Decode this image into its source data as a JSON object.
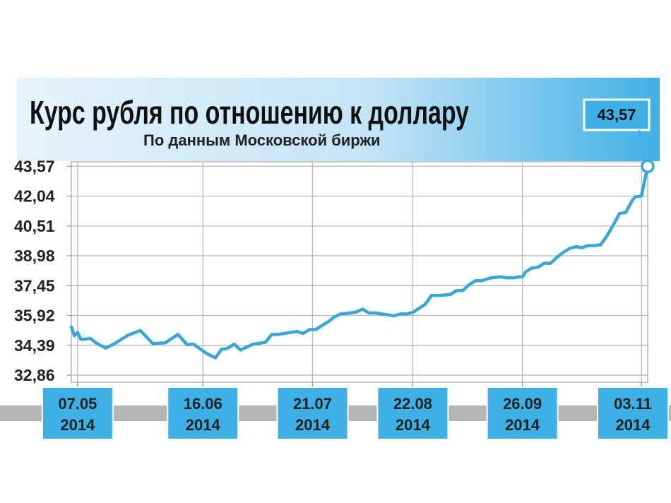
{
  "chart_data": {
    "type": "line",
    "title": "Курс рубля по отношению к доллару",
    "subtitle": "По данным Московской биржи",
    "y_ticks": [
      "43,57",
      "42,04",
      "40,51",
      "38,98",
      "37,45",
      "35,92",
      "34,39",
      "32,86"
    ],
    "y_tick_values": [
      43.57,
      42.04,
      40.51,
      38.98,
      37.45,
      35.92,
      34.39,
      32.86
    ],
    "ylim": [
      32.5,
      43.8
    ],
    "x_range": [
      "2014-05-05",
      "2014-11-05"
    ],
    "x_ticks": [
      {
        "date": "2014-05-07",
        "line1": "07.05",
        "line2": "2014"
      },
      {
        "date": "2014-06-16",
        "line1": "16.06",
        "line2": "2014"
      },
      {
        "date": "2014-07-21",
        "line1": "21.07",
        "line2": "2014"
      },
      {
        "date": "2014-08-22",
        "line1": "22.08",
        "line2": "2014"
      },
      {
        "date": "2014-09-26",
        "line1": "26.09",
        "line2": "2014"
      },
      {
        "date": "2014-11-03",
        "line1": "03.11",
        "line2": "2014"
      }
    ],
    "grid": true,
    "line_color": "#3aa6d8",
    "callout": {
      "label": "43,57",
      "date": "2014-11-05",
      "value": 43.57
    },
    "series": [
      {
        "x": [
          "2014-05-05",
          "2014-05-06",
          "2014-05-07",
          "2014-05-08",
          "2014-05-09",
          "2014-05-11",
          "2014-05-13",
          "2014-05-16",
          "2014-05-19",
          "2014-05-23",
          "2014-05-27",
          "2014-05-31",
          "2014-06-04",
          "2014-06-08",
          "2014-06-11",
          "2014-06-13",
          "2014-06-16",
          "2014-06-18",
          "2014-06-20",
          "2014-06-22",
          "2014-06-23",
          "2014-06-24",
          "2014-06-26",
          "2014-06-28",
          "2014-07-02",
          "2014-07-06",
          "2014-07-08",
          "2014-07-10",
          "2014-07-12",
          "2014-07-16",
          "2014-07-18",
          "2014-07-20",
          "2014-07-22",
          "2014-07-24",
          "2014-07-26",
          "2014-07-28",
          "2014-07-30",
          "2014-08-02",
          "2014-08-04",
          "2014-08-06",
          "2014-08-08",
          "2014-08-10",
          "2014-08-12",
          "2014-08-14",
          "2014-08-16",
          "2014-08-18",
          "2014-08-20",
          "2014-08-22",
          "2014-08-26",
          "2014-08-28",
          "2014-08-31",
          "2014-09-03",
          "2014-09-05",
          "2014-09-07",
          "2014-09-09",
          "2014-09-11",
          "2014-09-13",
          "2014-09-16",
          "2014-09-19",
          "2014-09-21",
          "2014-09-23",
          "2014-09-25",
          "2014-09-26",
          "2014-09-27",
          "2014-09-29",
          "2014-10-01",
          "2014-10-03",
          "2014-10-05",
          "2014-10-07",
          "2014-10-09",
          "2014-10-11",
          "2014-10-13",
          "2014-10-15",
          "2014-10-17",
          "2014-10-19",
          "2014-10-21",
          "2014-10-23",
          "2014-10-25",
          "2014-10-27",
          "2014-10-29",
          "2014-10-31",
          "2014-11-01",
          "2014-11-03",
          "2014-11-05"
        ],
        "y": [
          35.33,
          34.88,
          35.05,
          34.7,
          34.7,
          34.75,
          34.5,
          34.25,
          34.5,
          34.9,
          35.15,
          34.48,
          34.52,
          34.95,
          34.42,
          34.45,
          34.1,
          33.9,
          33.75,
          34.2,
          34.2,
          34.25,
          34.45,
          34.15,
          34.45,
          34.55,
          34.95,
          34.95,
          35.0,
          35.1,
          35.0,
          35.2,
          35.2,
          35.4,
          35.6,
          35.85,
          36.0,
          36.05,
          36.1,
          36.25,
          36.05,
          36.05,
          36.0,
          35.95,
          35.9,
          36.0,
          36.0,
          36.08,
          36.5,
          36.95,
          36.95,
          37.0,
          37.2,
          37.2,
          37.5,
          37.7,
          37.7,
          37.85,
          37.9,
          37.85,
          37.85,
          37.9,
          37.9,
          38.15,
          38.35,
          38.4,
          38.6,
          38.6,
          38.9,
          39.15,
          39.35,
          39.45,
          39.4,
          39.5,
          39.5,
          39.55,
          40.0,
          40.55,
          41.15,
          41.2,
          41.8,
          42.0,
          42.05,
          43.57
        ]
      }
    ]
  }
}
